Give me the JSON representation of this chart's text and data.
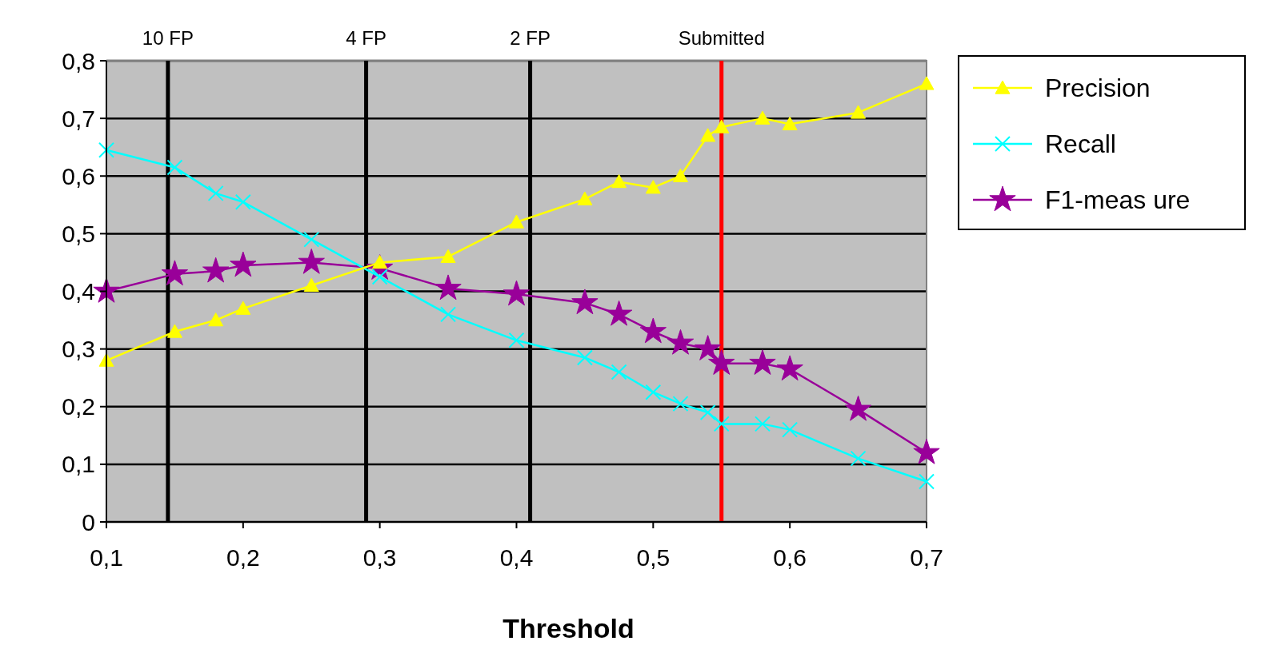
{
  "chart_data": {
    "type": "line",
    "xlabel": "Threshold",
    "grid": "y",
    "legend": "right",
    "xlim": [
      0.1,
      0.7
    ],
    "xticks": [
      {
        "value": 0.1,
        "label": "0,1"
      },
      {
        "value": 0.2,
        "label": "0,2"
      },
      {
        "value": 0.3,
        "label": "0,3"
      },
      {
        "value": 0.4,
        "label": "0,4"
      },
      {
        "value": 0.5,
        "label": "0,5"
      },
      {
        "value": 0.6,
        "label": "0,6"
      },
      {
        "value": 0.7,
        "label": "0,7"
      }
    ],
    "ylim": [
      0,
      0.8
    ],
    "yticks": [
      0,
      {
        "value": 0.1,
        "label": "0,1"
      },
      {
        "value": 0.2,
        "label": "0,2"
      },
      {
        "value": 0.3,
        "label": "0,3"
      },
      {
        "value": 0.4,
        "label": "0,4"
      },
      {
        "value": 0.5,
        "label": "0,5"
      },
      {
        "value": 0.6,
        "label": "0,6"
      },
      {
        "value": 0.7,
        "label": "0,7"
      },
      {
        "value": 0.8,
        "label": "0,8"
      }
    ],
    "x": [
      0.1,
      0.15,
      0.18,
      0.2,
      0.25,
      0.3,
      0.35,
      0.4,
      0.45,
      0.475,
      0.5,
      0.52,
      0.54,
      0.55,
      0.58,
      0.6,
      0.65,
      0.7
    ],
    "series": [
      {
        "name": "Precision",
        "color": "#ffff00",
        "marker": "triangle",
        "values": [
          0.28,
          0.33,
          0.35,
          0.37,
          0.41,
          0.45,
          0.46,
          0.52,
          0.56,
          0.59,
          0.58,
          0.6,
          0.67,
          0.685,
          0.7,
          0.69,
          0.71,
          0.76
        ]
      },
      {
        "name": "Recall",
        "color": "#00ffff",
        "marker": "cross",
        "values": [
          0.645,
          0.615,
          0.57,
          0.555,
          0.49,
          0.425,
          0.36,
          0.315,
          0.285,
          0.26,
          0.225,
          0.205,
          0.19,
          0.17,
          0.17,
          0.16,
          0.11,
          0.07
        ]
      },
      {
        "name": "F1-meas ure",
        "color": "#990099",
        "marker": "star",
        "values": [
          0.4,
          0.43,
          0.435,
          0.445,
          0.45,
          0.44,
          0.405,
          0.395,
          0.38,
          0.36,
          0.33,
          0.31,
          0.3,
          0.275,
          0.275,
          0.265,
          0.195,
          0.12
        ]
      }
    ],
    "ref_lines": [
      {
        "axis": "x",
        "value": 0.145,
        "label": "10 FP",
        "color": "#000000"
      },
      {
        "axis": "x",
        "value": 0.29,
        "label": "4 FP",
        "color": "#000000"
      },
      {
        "axis": "x",
        "value": 0.41,
        "label": "2 FP",
        "color": "#000000"
      },
      {
        "axis": "x",
        "value": 0.55,
        "label": "Submitted",
        "color": "#ff0000"
      }
    ]
  }
}
